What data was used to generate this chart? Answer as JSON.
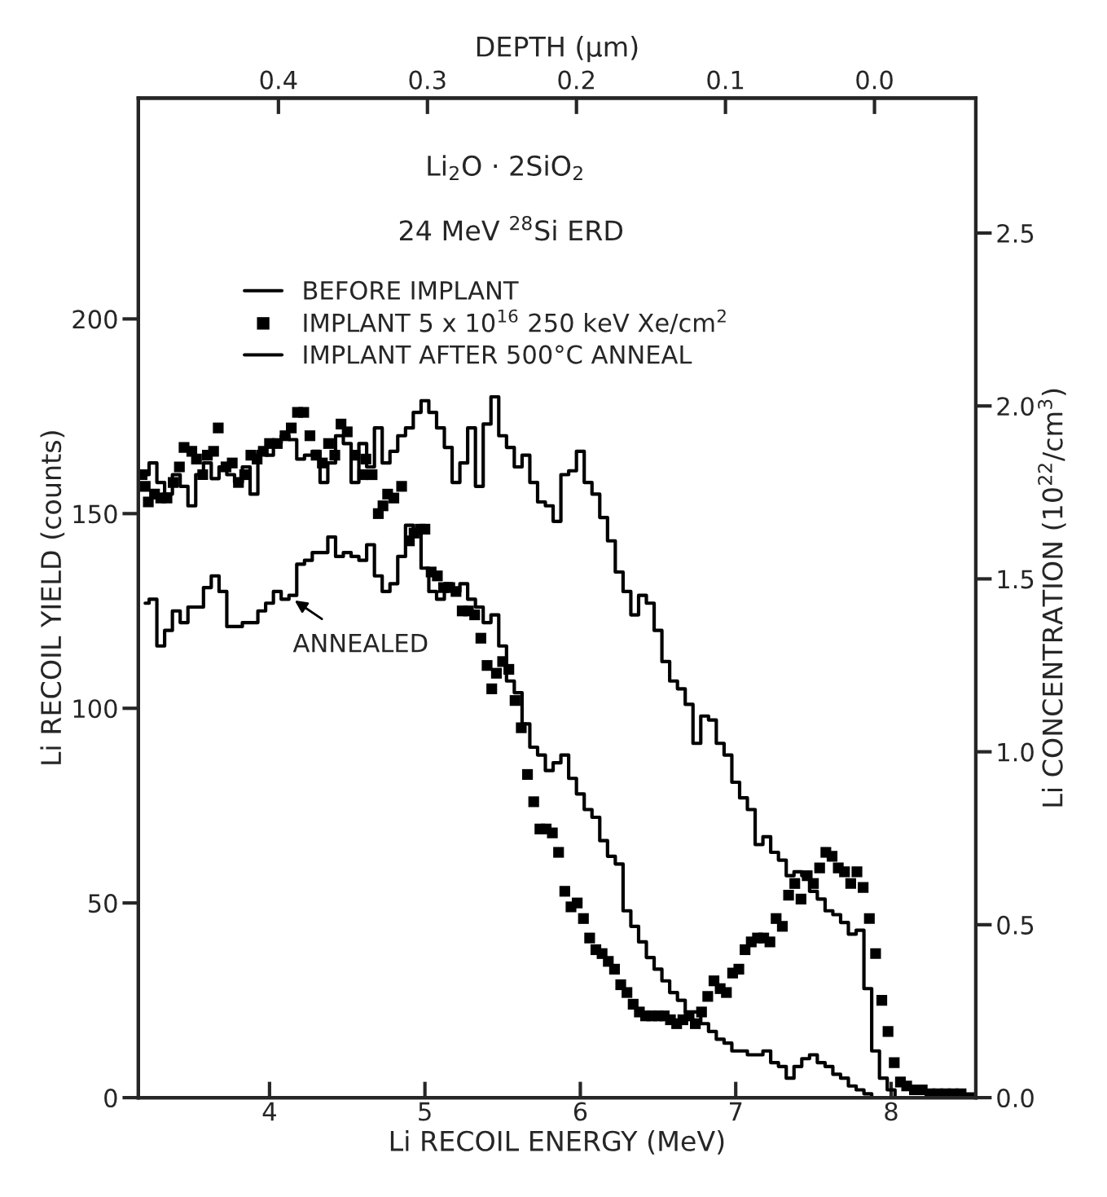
{
  "chart_data": {
    "type": "step",
    "xlabel": "Li RECOIL ENERGY (MeV)",
    "ylabel": "Li RECOIL YIELD (counts)",
    "y2label": "Li CONCENTRATION (10$^{22}$/cm$^{3}$)",
    "x2label": "DEPTH (μm)",
    "annotations": [
      "Li$_{2}$O · 2SiO$_{2}$",
      "24 MeV $^{28}$Si ERD",
      {
        "text": "ANNEALED",
        "x": 4.15,
        "y": 128
      }
    ],
    "xlim": [
      3.156,
      8.545
    ],
    "xticks": [
      4,
      5,
      6,
      7,
      8
    ],
    "ylim": [
      0,
      256.7
    ],
    "yticks": [
      0,
      50,
      100,
      150,
      200
    ],
    "y2lim": [
      0,
      2.89
    ],
    "y2ticks": [
      {
        "value": 0,
        "label": "0.0"
      },
      {
        "value": 0.5,
        "label": "0.5"
      },
      {
        "value": 1,
        "label": "1.0"
      },
      {
        "value": 1.5,
        "label": "1.5"
      },
      {
        "value": 2,
        "label": "2.0"
      },
      {
        "value": 2.5,
        "label": "2.5"
      }
    ],
    "x2lim": [
      0.494,
      -0.068
    ],
    "x2ticks": [
      {
        "value": 0.4,
        "label": "0.4"
      },
      {
        "value": 0.3,
        "label": "0.3"
      },
      {
        "value": 0.2,
        "label": "0.2"
      },
      {
        "value": 0.1,
        "label": "0.1"
      },
      {
        "value": 0,
        "label": "0.0"
      }
    ],
    "grid": false,
    "legend": "top left",
    "series": [
      {
        "name": "BEFORE IMPLANT",
        "color": "#000000",
        "line_style": "solid",
        "x": [
          3.2,
          3.25,
          3.3,
          3.35,
          3.4,
          3.45,
          3.5,
          3.55,
          3.6,
          3.65,
          3.7,
          3.75,
          3.8,
          3.85,
          3.9,
          3.95,
          4.0,
          4.05,
          4.1,
          4.15,
          4.2,
          4.25,
          4.3,
          4.35,
          4.4,
          4.45,
          4.5,
          4.55,
          4.6,
          4.65,
          4.7,
          4.75,
          4.8,
          4.85,
          4.9,
          4.95,
          5.0,
          5.05,
          5.1,
          5.15,
          5.2,
          5.25,
          5.3,
          5.35,
          5.4,
          5.45,
          5.5,
          5.55,
          5.6,
          5.65,
          5.7,
          5.75,
          5.8,
          5.85,
          5.9,
          5.95,
          6.0,
          6.05,
          6.1,
          6.15,
          6.2,
          6.25,
          6.3,
          6.35,
          6.4,
          6.45,
          6.5,
          6.55,
          6.6,
          6.65,
          6.7,
          6.75,
          6.8,
          6.85,
          6.9,
          6.95,
          7.0,
          7.05,
          7.1,
          7.15,
          7.2,
          7.25,
          7.3,
          7.35,
          7.4,
          7.45,
          7.5,
          7.55,
          7.6,
          7.65,
          7.7,
          7.75,
          7.8,
          7.85,
          7.9,
          7.95,
          8.0,
          8.05
        ],
        "values": [
          160,
          163,
          158,
          155,
          160,
          157,
          152,
          160,
          163,
          159,
          162,
          160,
          158,
          162,
          155,
          166,
          165,
          168,
          170,
          169,
          164,
          165,
          166,
          158,
          163,
          170,
          168,
          158,
          168,
          162,
          172,
          163,
          166,
          170,
          172,
          176,
          179,
          176,
          172,
          167,
          158,
          163,
          172,
          157,
          173,
          180,
          170,
          167,
          162,
          165,
          158,
          153,
          152,
          148,
          160,
          161,
          166,
          158,
          155,
          149,
          143,
          135,
          130,
          124,
          129,
          127,
          120,
          112,
          107,
          105,
          101,
          91,
          98,
          97,
          91,
          88,
          81,
          77,
          74,
          65,
          67,
          63,
          61,
          57,
          58,
          57,
          53,
          51,
          48,
          47,
          45,
          42,
          43,
          28,
          12,
          5,
          2,
          0
        ]
      },
      {
        "name": "IMPLANT 5 x 10$^{16}$ 250 keV Xe/cm$^{2}$",
        "type": "scatter",
        "marker": "square",
        "color": "#000000",
        "x": [
          3.18,
          3.2,
          3.22,
          3.26,
          3.3,
          3.34,
          3.38,
          3.42,
          3.45,
          3.5,
          3.53,
          3.57,
          3.6,
          3.64,
          3.67,
          3.72,
          3.76,
          3.8,
          3.84,
          3.88,
          3.92,
          3.96,
          4.0,
          4.05,
          4.1,
          4.14,
          4.18,
          4.22,
          4.26,
          4.3,
          4.34,
          4.38,
          4.42,
          4.46,
          4.5,
          4.55,
          4.6,
          4.62,
          4.66,
          4.7,
          4.73,
          4.76,
          4.8,
          4.85,
          4.9,
          4.93,
          4.97,
          5.0,
          5.04,
          5.08,
          5.12,
          5.16,
          5.2,
          5.24,
          5.28,
          5.32,
          5.36,
          5.4,
          5.43,
          5.46,
          5.5,
          5.54,
          5.58,
          5.62,
          5.66,
          5.7,
          5.74,
          5.78,
          5.82,
          5.86,
          5.9,
          5.94,
          5.98,
          6.02,
          6.06,
          6.1,
          6.14,
          6.18,
          6.22,
          6.26,
          6.3,
          6.34,
          6.38,
          6.42,
          6.46,
          6.5,
          6.54,
          6.58,
          6.62,
          6.66,
          6.7,
          6.74,
          6.78,
          6.82,
          6.86,
          6.9,
          6.94,
          6.98,
          7.02,
          7.06,
          7.1,
          7.14,
          7.18,
          7.22,
          7.26,
          7.3,
          7.34,
          7.38,
          7.42,
          7.46,
          7.5,
          7.54,
          7.58,
          7.62,
          7.66,
          7.7,
          7.74,
          7.78,
          7.82,
          7.86,
          7.9,
          7.94,
          7.98,
          8.02,
          8.06,
          8.1,
          8.15,
          8.2,
          8.25,
          8.3,
          8.35,
          8.4,
          8.45,
          8.5
        ],
        "values": [
          160,
          157,
          153,
          155,
          154,
          154,
          158,
          162,
          167,
          166,
          164,
          160,
          165,
          166,
          172,
          162,
          163,
          158,
          160,
          165,
          164,
          166,
          168,
          168,
          170,
          172,
          176,
          176,
          170,
          165,
          163,
          168,
          165,
          173,
          171,
          165,
          160,
          164,
          160,
          150,
          152,
          155,
          154,
          157,
          143,
          145,
          146,
          146,
          135,
          134,
          131,
          131,
          130,
          125,
          125,
          124,
          118,
          111,
          105,
          109,
          112,
          110,
          102,
          95,
          83,
          76,
          69,
          69,
          68,
          63,
          53,
          49,
          50,
          46,
          41,
          38,
          37,
          35,
          33,
          29,
          27,
          24,
          22,
          21,
          21,
          21,
          21,
          20,
          19,
          20,
          21,
          19,
          22,
          26,
          30,
          28,
          27,
          32,
          33,
          38,
          40,
          41,
          41,
          40,
          46,
          44,
          52,
          55,
          51,
          57,
          55,
          59,
          63,
          62,
          59,
          58,
          55,
          58,
          54,
          46,
          37,
          25,
          17,
          9,
          4,
          3,
          2,
          2,
          1,
          1,
          1,
          1,
          1,
          0
        ]
      },
      {
        "name": "IMPLANT AFTER 500°C ANNEAL",
        "color": "#000000",
        "line_style": "solid",
        "x": [
          3.2,
          3.25,
          3.3,
          3.35,
          3.4,
          3.45,
          3.5,
          3.55,
          3.6,
          3.65,
          3.7,
          3.75,
          3.8,
          3.85,
          3.9,
          3.95,
          4.0,
          4.05,
          4.1,
          4.15,
          4.2,
          4.25,
          4.3,
          4.35,
          4.4,
          4.45,
          4.5,
          4.55,
          4.6,
          4.65,
          4.7,
          4.75,
          4.8,
          4.85,
          4.9,
          4.95,
          5.0,
          5.05,
          5.1,
          5.15,
          5.2,
          5.25,
          5.3,
          5.35,
          5.4,
          5.45,
          5.5,
          5.55,
          5.6,
          5.65,
          5.7,
          5.75,
          5.8,
          5.85,
          5.9,
          5.95,
          6.0,
          6.05,
          6.1,
          6.15,
          6.2,
          6.25,
          6.3,
          6.35,
          6.4,
          6.45,
          6.5,
          6.55,
          6.6,
          6.65,
          6.7,
          6.75,
          6.8,
          6.85,
          6.9,
          6.95,
          7.0,
          7.05,
          7.1,
          7.15,
          7.2,
          7.25,
          7.3,
          7.35,
          7.4,
          7.45,
          7.5,
          7.55,
          7.6,
          7.65,
          7.7,
          7.75,
          7.8,
          7.85,
          7.9
        ],
        "values": [
          127,
          128,
          116,
          120,
          125,
          122,
          126,
          126,
          131,
          134,
          130,
          121,
          121,
          122,
          122,
          125,
          127,
          130,
          128,
          129,
          137,
          138,
          140,
          140,
          144,
          139,
          140,
          139,
          138,
          142,
          134,
          130,
          132,
          139,
          147,
          145,
          136,
          130,
          128,
          132,
          130,
          132,
          128,
          126,
          122,
          124,
          116,
          107,
          104,
          96,
          90,
          88,
          84,
          86,
          88,
          82,
          78,
          74,
          72,
          66,
          62,
          60,
          48,
          44,
          40,
          36,
          33,
          30,
          27,
          25,
          22,
          22,
          19,
          17,
          15,
          14,
          12,
          12,
          11,
          11,
          12,
          9,
          8,
          5,
          8,
          10,
          11,
          9,
          8,
          6,
          5,
          3,
          2,
          1,
          0
        ]
      }
    ]
  }
}
